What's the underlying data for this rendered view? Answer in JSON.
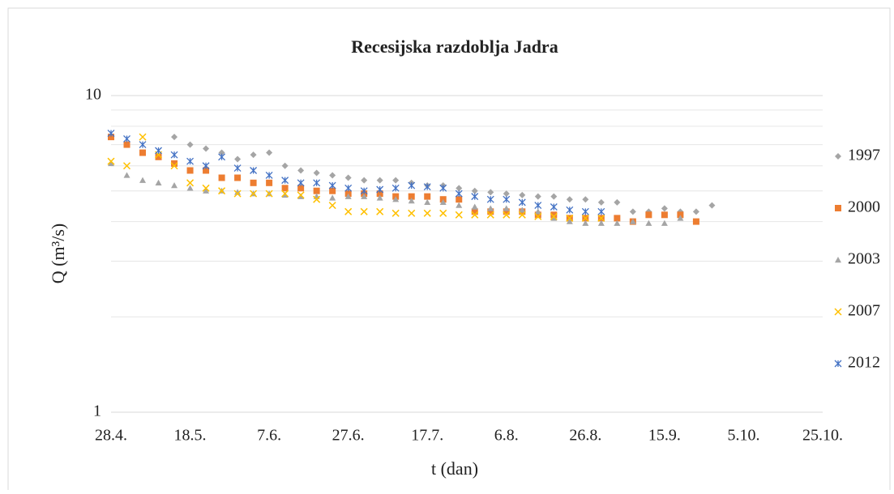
{
  "chart_data": {
    "type": "scatter",
    "title": "Recesijska razdoblja Jadra",
    "xlabel": "t (dan)",
    "ylabel": "Q (m³/s)",
    "log_y": true,
    "grid": true,
    "legend": "right",
    "xlim": [
      0,
      180
    ],
    "xticks": [
      {
        "value": 0,
        "label": "28.4."
      },
      {
        "value": 20,
        "label": "18.5."
      },
      {
        "value": 40,
        "label": "7.6."
      },
      {
        "value": 60,
        "label": "27.6."
      },
      {
        "value": 80,
        "label": "17.7."
      },
      {
        "value": 100,
        "label": "6.8."
      },
      {
        "value": 120,
        "label": "26.8."
      },
      {
        "value": 140,
        "label": "15.9."
      },
      {
        "value": 160,
        "label": "5.10."
      },
      {
        "value": 180,
        "label": "25.10."
      }
    ],
    "ylim": [
      1,
      10
    ],
    "yticks": [
      1,
      10
    ],
    "yminorticks": [
      2,
      3,
      4,
      5,
      6,
      7,
      8,
      9
    ],
    "series": [
      {
        "name": "1997",
        "color": "#a5a5a5",
        "marker": "diamond",
        "x": [
          16,
          20,
          24,
          28,
          32,
          36,
          40,
          44,
          48,
          52,
          56,
          60,
          64,
          68,
          72,
          76,
          80,
          84,
          88,
          92,
          96,
          100,
          104,
          108,
          112,
          116,
          120,
          124,
          128,
          132,
          136,
          140,
          144,
          148,
          152
        ],
        "values": [
          7.4,
          7.0,
          6.8,
          6.6,
          6.3,
          6.5,
          6.6,
          6.0,
          5.8,
          5.7,
          5.6,
          5.5,
          5.4,
          5.4,
          5.4,
          5.3,
          5.2,
          5.2,
          5.1,
          5.0,
          4.95,
          4.9,
          4.85,
          4.8,
          4.8,
          4.7,
          4.7,
          4.6,
          4.6,
          4.3,
          4.3,
          4.4,
          4.3,
          4.3,
          4.5
        ]
      },
      {
        "name": "2000",
        "color": "#ed7d31",
        "marker": "square",
        "x": [
          0,
          4,
          8,
          12,
          16,
          20,
          24,
          28,
          32,
          36,
          40,
          44,
          48,
          52,
          56,
          60,
          64,
          68,
          72,
          76,
          80,
          84,
          88,
          92,
          96,
          100,
          104,
          108,
          112,
          116,
          120,
          124,
          128,
          132,
          136,
          140,
          144,
          148
        ],
        "values": [
          7.4,
          7.0,
          6.6,
          6.4,
          6.1,
          5.8,
          5.8,
          5.5,
          5.5,
          5.3,
          5.3,
          5.1,
          5.1,
          5.0,
          5.0,
          4.9,
          4.9,
          4.9,
          4.8,
          4.8,
          4.8,
          4.7,
          4.7,
          4.3,
          4.3,
          4.3,
          4.3,
          4.2,
          4.2,
          4.1,
          4.1,
          4.1,
          4.1,
          4.0,
          4.2,
          4.2,
          4.2,
          4.0
        ]
      },
      {
        "name": "2003",
        "color": "#a5a5a5",
        "marker": "triangle",
        "x": [
          0,
          4,
          8,
          12,
          16,
          20,
          24,
          28,
          32,
          36,
          40,
          44,
          48,
          52,
          56,
          60,
          64,
          68,
          72,
          76,
          80,
          84,
          88,
          92,
          96,
          100,
          104,
          108,
          112,
          116,
          120,
          124,
          128,
          132,
          136,
          140,
          144
        ],
        "values": [
          6.1,
          5.6,
          5.4,
          5.3,
          5.2,
          5.1,
          5.0,
          5.0,
          4.95,
          4.9,
          4.9,
          4.85,
          4.8,
          4.8,
          4.75,
          4.8,
          4.8,
          4.75,
          4.7,
          4.65,
          4.6,
          4.6,
          4.5,
          4.45,
          4.4,
          4.4,
          4.35,
          4.3,
          4.1,
          4.0,
          3.95,
          3.95,
          3.95,
          4.0,
          3.95,
          3.95,
          4.1
        ]
      },
      {
        "name": "2007",
        "color": "#ffc000",
        "marker": "x",
        "x": [
          0,
          4,
          8,
          12,
          16,
          20,
          24,
          28,
          32,
          36,
          40,
          44,
          48,
          52,
          56,
          60,
          64,
          68,
          72,
          76,
          80,
          84,
          88,
          92,
          96,
          100,
          104,
          108,
          112,
          116,
          120,
          124
        ],
        "values": [
          6.2,
          6.0,
          7.4,
          6.5,
          6.0,
          5.3,
          5.1,
          5.0,
          4.9,
          4.9,
          4.9,
          4.9,
          4.85,
          4.7,
          4.5,
          4.3,
          4.3,
          4.3,
          4.25,
          4.25,
          4.25,
          4.25,
          4.2,
          4.2,
          4.2,
          4.2,
          4.2,
          4.15,
          4.15,
          4.1,
          4.1,
          4.1
        ]
      },
      {
        "name": "2012",
        "color": "#4472c4",
        "marker": "star",
        "x": [
          0,
          4,
          8,
          12,
          16,
          20,
          24,
          28,
          32,
          36,
          40,
          44,
          48,
          52,
          56,
          60,
          64,
          68,
          72,
          76,
          80,
          84,
          88,
          92,
          96,
          100,
          104,
          108,
          112,
          116,
          120,
          124
        ],
        "values": [
          7.6,
          7.3,
          7.0,
          6.7,
          6.5,
          6.2,
          6.0,
          6.4,
          5.9,
          5.8,
          5.6,
          5.4,
          5.3,
          5.3,
          5.2,
          5.1,
          5.0,
          5.05,
          5.1,
          5.2,
          5.15,
          5.1,
          4.9,
          4.8,
          4.7,
          4.7,
          4.6,
          4.5,
          4.45,
          4.35,
          4.3,
          4.3
        ]
      }
    ]
  }
}
